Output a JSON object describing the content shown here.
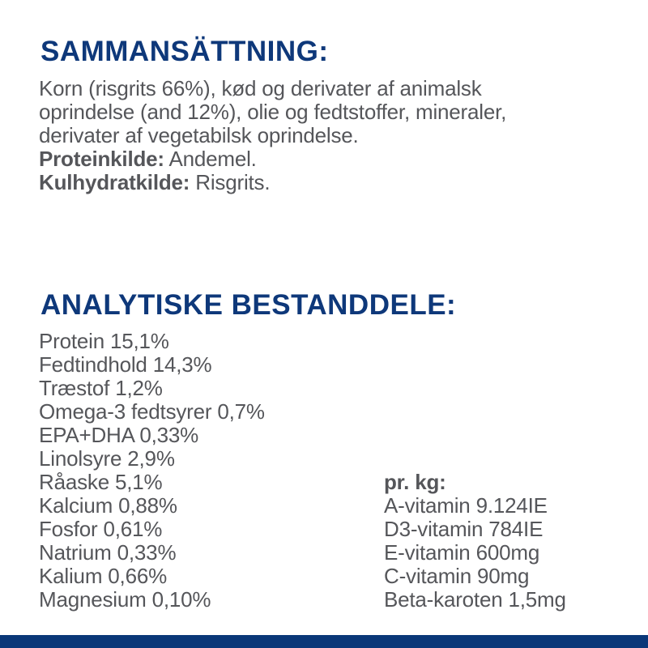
{
  "colors": {
    "heading": "#0e387a",
    "body_text": "#55565a",
    "bottom_bar": "#0a3778",
    "background": "#ffffff"
  },
  "composition": {
    "heading": "SAMMANSÄTTNING:",
    "body_lines": [
      "Korn (risgrits 66%), kød og derivater af animalsk",
      "oprindelse (and 12%), olie og fedtstoffer, mineraler,",
      "derivater af vegetabilsk oprindelse."
    ],
    "sources": [
      {
        "label": "Proteinkilde:",
        "value": " Andemel."
      },
      {
        "label": "Kulhydratkilde:",
        "value": " Risgrits."
      }
    ]
  },
  "analysis": {
    "heading": "ANALYTISKE BESTANDDELE:",
    "nutrients": [
      "Protein 15,1%",
      "Fedtindhold 14,3%",
      "Træstof 1,2%",
      "Omega-3 fedtsyrer 0,7%",
      "EPA+DHA 0,33%",
      "Linolsyre 2,9%",
      "Råaske 5,1%",
      "Kalcium 0,88%",
      "Fosfor 0,61%",
      "Natrium 0,33%",
      "Kalium 0,66%",
      "Magnesium 0,10%"
    ],
    "per_kg": {
      "heading": "pr. kg:",
      "vitamins": [
        "A-vitamin 9.124IE",
        "D3-vitamin 784IE",
        "E-vitamin 600mg",
        "C-vitamin 90mg",
        "Beta-karoten 1,5mg"
      ]
    }
  }
}
